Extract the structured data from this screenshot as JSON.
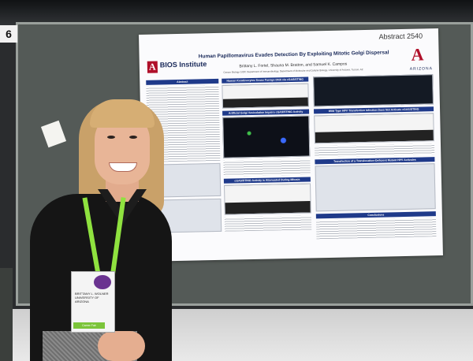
{
  "board": {
    "number": "6"
  },
  "poster": {
    "abstract_number": "Abstract 2540",
    "title": "Human Papillomavirus Evades Detection By Exploiting Mitotic Golgi Dispersal",
    "authors": "Brittany L. Fortel, Shauna M. Bratton, and Samuel K. Campos",
    "affiliation": "Cancer Biology GIDP, Department of Immunobiology, Department of Molecular and Cellular Biology, University of Arizona, Tucson, AZ",
    "bios_logo": "BIOS Institute",
    "university_logo": "ARIZONA",
    "section_headers": [
      "Abstract",
      "Human Keratinocytes Sense Foreign DNA via cGAS/STING",
      "Wild Type HPV Transfection Infection Does Not Activate cGAS/STING",
      "Artificial Golgi Vesiculation Impairs cGAS/STING Activity",
      "Transfection of a Translocation-Deficient Mutant HPV Activates",
      "cGAS/STING Activity is Attenuated During Mitosis",
      "Conclusions"
    ]
  },
  "badge": {
    "name": "BRITTANY L. WOLNER",
    "organization": "UNIVERSITY OF ARIZONA",
    "footer": "Career Fair"
  },
  "colors": {
    "poster_header": "#1f3a8a",
    "arizona_red": "#b0102a",
    "lanyard_green": "#8fe23f",
    "board_gray": "#545a57"
  }
}
